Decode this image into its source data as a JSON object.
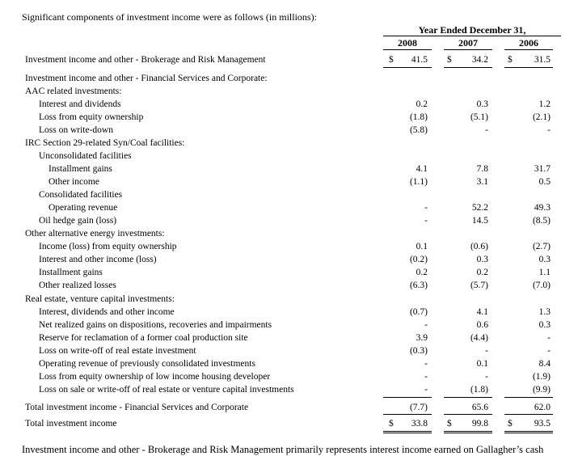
{
  "intro": "Significant components of investment income were as follows (in millions):",
  "header": {
    "title": "Year Ended December 31,",
    "years": [
      "2008",
      "2007",
      "2006"
    ]
  },
  "rows": [
    {
      "label": "Investment income and other - Brokerage and Risk Management",
      "indent": 0,
      "values": [
        "41.5",
        "34.2",
        "31.5"
      ],
      "dollar": true
    },
    {
      "label": "Investment income and other - Financial Services and Corporate:",
      "indent": 0,
      "values": [
        "",
        "",
        ""
      ]
    },
    {
      "label": "AAC related investments:",
      "indent": 0,
      "values": [
        "",
        "",
        ""
      ]
    },
    {
      "label": "Interest and dividends",
      "indent": 1,
      "values": [
        "0.2",
        "0.3",
        "1.2"
      ]
    },
    {
      "label": "Loss from equity ownership",
      "indent": 1,
      "values": [
        "(1.8)",
        "(5.1)",
        "(2.1)"
      ]
    },
    {
      "label": "Loss on write-down",
      "indent": 1,
      "values": [
        "(5.8)",
        "-",
        "-"
      ]
    },
    {
      "label": "IRC Section 29-related Syn/Coal facilities:",
      "indent": 0,
      "values": [
        "",
        "",
        ""
      ]
    },
    {
      "label": "Unconsolidated facilities",
      "indent": 1,
      "values": [
        "",
        "",
        ""
      ]
    },
    {
      "label": "Installment gains",
      "indent": 2,
      "values": [
        "4.1",
        "7.8",
        "31.7"
      ]
    },
    {
      "label": "Other income",
      "indent": 2,
      "values": [
        "(1.1)",
        "3.1",
        "0.5"
      ]
    },
    {
      "label": "Consolidated facilities",
      "indent": 1,
      "values": [
        "",
        "",
        ""
      ]
    },
    {
      "label": "Operating revenue",
      "indent": 2,
      "values": [
        "-",
        "52.2",
        "49.3"
      ]
    },
    {
      "label": "Oil hedge gain (loss)",
      "indent": 1,
      "values": [
        "-",
        "14.5",
        "(8.5)"
      ]
    },
    {
      "label": "Other alternative energy investments:",
      "indent": 0,
      "values": [
        "",
        "",
        ""
      ]
    },
    {
      "label": "Income (loss) from equity ownership",
      "indent": 1,
      "values": [
        "0.1",
        "(0.6)",
        "(2.7)"
      ]
    },
    {
      "label": "Interest and other income (loss)",
      "indent": 1,
      "values": [
        "(0.2)",
        "0.3",
        "0.3"
      ]
    },
    {
      "label": "Installment gains",
      "indent": 1,
      "values": [
        "0.2",
        "0.2",
        "1.1"
      ]
    },
    {
      "label": "Other realized losses",
      "indent": 1,
      "values": [
        "(6.3)",
        "(5.7)",
        "(7.0)"
      ]
    },
    {
      "label": "Real estate, venture capital investments:",
      "indent": 0,
      "values": [
        "",
        "",
        ""
      ]
    },
    {
      "label": "Interest, dividends and other income",
      "indent": 1,
      "values": [
        "(0.7)",
        "4.1",
        "1.3"
      ]
    },
    {
      "label": "Net realized gains on dispositions, recoveries and impairments",
      "indent": 1,
      "values": [
        "-",
        "0.6",
        "0.3"
      ]
    },
    {
      "label": "Reserve for reclamation of a former coal production site",
      "indent": 1,
      "values": [
        "3.9",
        "(4.4)",
        "-"
      ]
    },
    {
      "label": "Loss on write-off of real estate investment",
      "indent": 1,
      "values": [
        "(0.3)",
        "-",
        "-"
      ]
    },
    {
      "label": "Operating revenue of previously consolidated investments",
      "indent": 1,
      "values": [
        "-",
        "0.1",
        "8.4"
      ]
    },
    {
      "label": "Loss from equity ownership of low income housing developer",
      "indent": 1,
      "values": [
        "-",
        "-",
        "(1.9)"
      ]
    },
    {
      "label": "Loss on sale or write-off of real estate or venture capital investments",
      "indent": 1,
      "values": [
        "-",
        "(1.8)",
        "(9.9)"
      ]
    },
    {
      "label": "Total investment income - Financial Services and Corporate",
      "indent": 0,
      "values": [
        "(7.7)",
        "65.6",
        "62.0"
      ]
    },
    {
      "label": "Total investment income",
      "indent": 0,
      "values": [
        "33.8",
        "99.8",
        "93.5"
      ],
      "dollar": true
    }
  ],
  "currency_symbol": "$",
  "footer": "Investment income and other - Brokerage and Risk Management primarily represents interest income earned on Gallagher’s cash"
}
